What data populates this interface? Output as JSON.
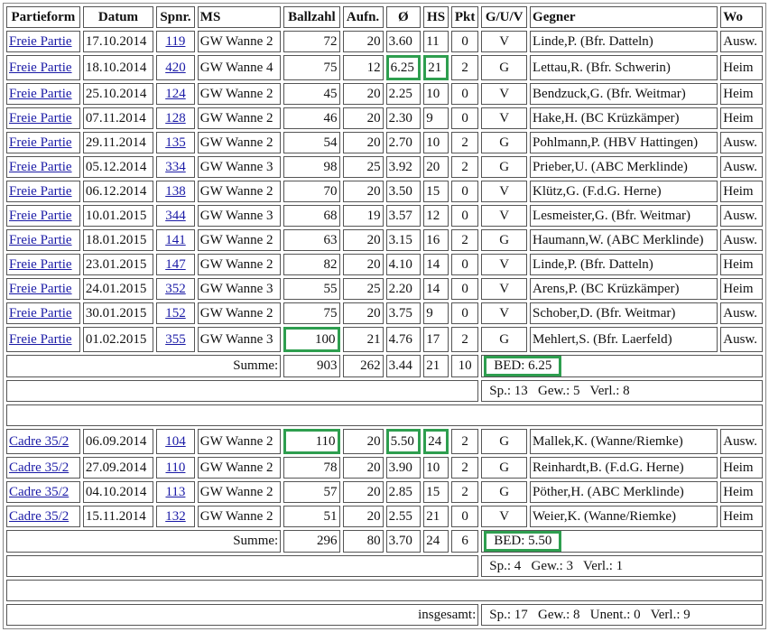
{
  "headers": [
    "Partieform",
    "Datum",
    "Spnr.",
    "MS",
    "Ballzahl",
    "Aufn.",
    "Ø",
    "HS",
    "Pkt",
    "G/U/V",
    "Gegner",
    "Wo"
  ],
  "highlight_color": "#2e9e4f",
  "sections": [
    {
      "rows": [
        [
          "Freie Partie",
          "17.10.2014",
          "119",
          "GW Wanne 2",
          "72",
          "20",
          "3.60",
          "11",
          "0",
          "V",
          "Linde,P. (Bfr. Datteln)",
          "Ausw."
        ],
        [
          "Freie Partie",
          "18.10.2014",
          "420",
          "GW Wanne 4",
          "75",
          "12",
          "6.25",
          "21",
          "2",
          "G",
          "Lettau,R. (Bfr. Schwerin)",
          "Heim"
        ],
        [
          "Freie Partie",
          "25.10.2014",
          "124",
          "GW Wanne 2",
          "45",
          "20",
          "2.25",
          "10",
          "0",
          "V",
          "Bendzuck,G. (Bfr. Weitmar)",
          "Heim"
        ],
        [
          "Freie Partie",
          "07.11.2014",
          "128",
          "GW Wanne 2",
          "46",
          "20",
          "2.30",
          "9",
          "0",
          "V",
          "Hake,H. (BC Krüzkämper)",
          "Heim"
        ],
        [
          "Freie Partie",
          "29.11.2014",
          "135",
          "GW Wanne 2",
          "54",
          "20",
          "2.70",
          "10",
          "2",
          "G",
          "Pohlmann,P. (HBV Hattingen)",
          "Ausw."
        ],
        [
          "Freie Partie",
          "05.12.2014",
          "334",
          "GW Wanne 3",
          "98",
          "25",
          "3.92",
          "20",
          "2",
          "G",
          "Prieber,U. (ABC Merklinde)",
          "Ausw."
        ],
        [
          "Freie Partie",
          "06.12.2014",
          "138",
          "GW Wanne 2",
          "70",
          "20",
          "3.50",
          "15",
          "0",
          "V",
          "Klütz,G. (F.d.G. Herne)",
          "Heim"
        ],
        [
          "Freie Partie",
          "10.01.2015",
          "344",
          "GW Wanne 3",
          "68",
          "19",
          "3.57",
          "12",
          "0",
          "V",
          "Lesmeister,G. (Bfr. Weitmar)",
          "Ausw."
        ],
        [
          "Freie Partie",
          "18.01.2015",
          "141",
          "GW Wanne 2",
          "63",
          "20",
          "3.15",
          "16",
          "2",
          "G",
          "Haumann,W. (ABC Merklinde)",
          "Ausw."
        ],
        [
          "Freie Partie",
          "23.01.2015",
          "147",
          "GW Wanne 2",
          "82",
          "20",
          "4.10",
          "14",
          "0",
          "V",
          "Linde,P. (Bfr. Datteln)",
          "Heim"
        ],
        [
          "Freie Partie",
          "24.01.2015",
          "352",
          "GW Wanne 3",
          "55",
          "25",
          "2.20",
          "14",
          "0",
          "V",
          "Arens,P. (BC Krüzkämper)",
          "Heim"
        ],
        [
          "Freie Partie",
          "30.01.2015",
          "152",
          "GW Wanne 2",
          "75",
          "20",
          "3.75",
          "9",
          "0",
          "V",
          "Schober,D. (Bfr. Weitmar)",
          "Ausw."
        ],
        [
          "Freie Partie",
          "01.02.2015",
          "355",
          "GW Wanne 3",
          "100",
          "21",
          "4.76",
          "17",
          "2",
          "G",
          "Mehlert,S. (Bfr. Laerfeld)",
          "Ausw."
        ]
      ],
      "highlights": [
        [
          1,
          6
        ],
        [
          1,
          7
        ],
        [
          12,
          4
        ]
      ],
      "summe": {
        "label": "Summe:",
        "ballzahl": "903",
        "aufn": "262",
        "avg": "3.44",
        "hs": "21",
        "pkt": "10",
        "bed": "BED: 6.25"
      },
      "stats": "Sp.: 13   Gew.: 5   Verl.: 8"
    },
    {
      "rows": [
        [
          "Cadre 35/2",
          "06.09.2014",
          "104",
          "GW Wanne 2",
          "110",
          "20",
          "5.50",
          "24",
          "2",
          "G",
          "Mallek,K. (Wanne/Riemke)",
          "Ausw."
        ],
        [
          "Cadre 35/2",
          "27.09.2014",
          "110",
          "GW Wanne 2",
          "78",
          "20",
          "3.90",
          "10",
          "2",
          "G",
          "Reinhardt,B. (F.d.G. Herne)",
          "Heim"
        ],
        [
          "Cadre 35/2",
          "04.10.2014",
          "113",
          "GW Wanne 2",
          "57",
          "20",
          "2.85",
          "15",
          "2",
          "G",
          "Pöther,H. (ABC Merklinde)",
          "Heim"
        ],
        [
          "Cadre 35/2",
          "15.11.2014",
          "132",
          "GW Wanne 2",
          "51",
          "20",
          "2.55",
          "21",
          "0",
          "V",
          "Weier,K. (Wanne/Riemke)",
          "Heim"
        ]
      ],
      "highlights": [
        [
          0,
          4
        ],
        [
          0,
          6
        ],
        [
          0,
          7
        ]
      ],
      "summe": {
        "label": "Summe:",
        "ballzahl": "296",
        "aufn": "80",
        "avg": "3.70",
        "hs": "24",
        "pkt": "6",
        "bed": "BED: 5.50"
      },
      "stats": "Sp.: 4   Gew.: 3   Verl.: 1"
    }
  ],
  "total": {
    "label": "insgesamt:",
    "stats": "Sp.: 17   Gew.: 8   Unent.: 0   Verl.: 9"
  }
}
